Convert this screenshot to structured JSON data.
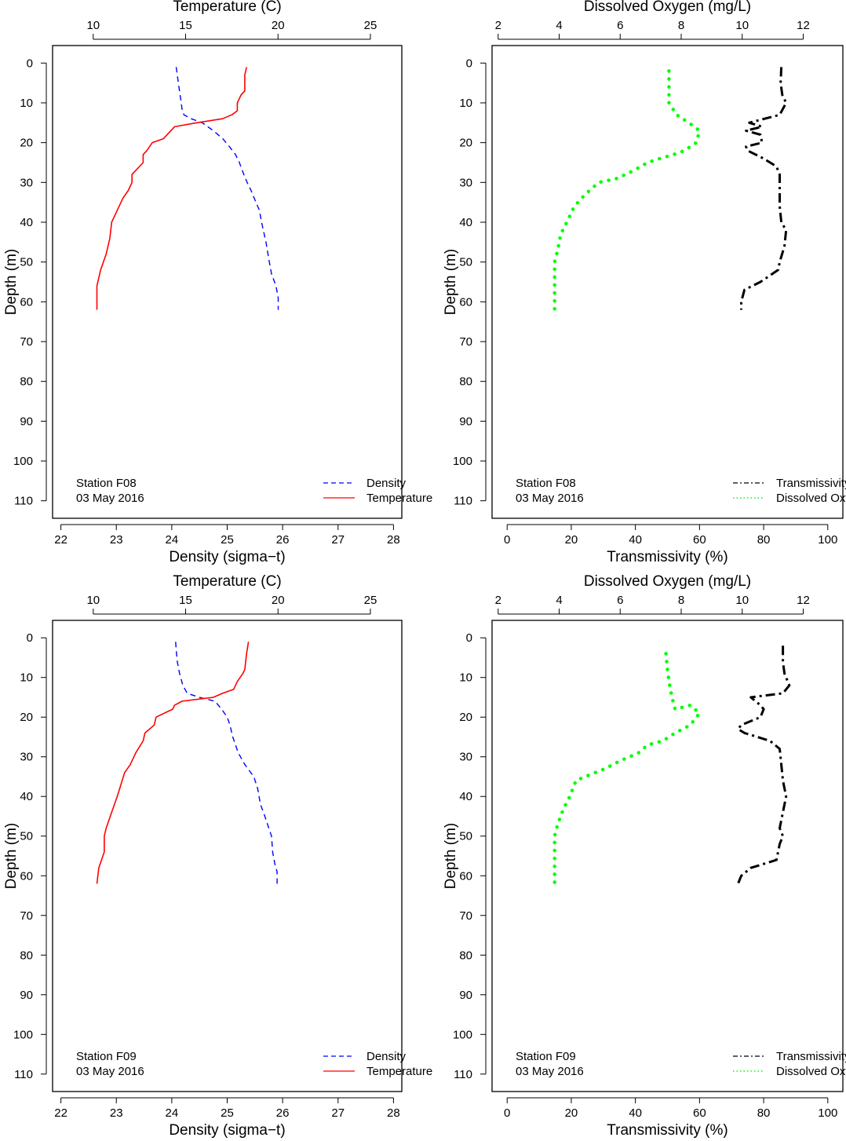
{
  "chart_data": [
    {
      "type": "line",
      "panel": "F08 temperature/density",
      "top_axis": {
        "label": "Temperature (C)",
        "range": [
          7.8,
          26.7
        ],
        "ticks": [
          10,
          15,
          20,
          25
        ]
      },
      "bottom_axis": {
        "label": "Density (sigma−t)",
        "range": [
          21.85,
          28.15
        ],
        "ticks": [
          22,
          23,
          24,
          25,
          26,
          27,
          28
        ]
      },
      "y_axis": {
        "label": "Depth (m)",
        "range": [
          -4.4,
          114.4
        ],
        "reversed": true,
        "ticks": [
          0,
          10,
          20,
          30,
          40,
          50,
          60,
          70,
          80,
          90,
          100,
          110
        ]
      },
      "legend": {
        "placement": "bottom-right",
        "entries": [
          "Density",
          "Temperature"
        ]
      },
      "annotation": {
        "station": "Station F08",
        "date": "03 May 2016"
      },
      "series": [
        {
          "name": "Density",
          "axis": "bottom",
          "color": "#0000ff",
          "style": "dashed",
          "x": [
            24.08,
            24.1,
            24.13,
            24.16,
            24.18,
            24.19,
            24.22,
            24.35,
            24.55,
            24.75,
            24.92,
            25.04,
            25.15,
            25.22,
            25.3,
            25.36,
            25.43,
            25.52,
            25.58,
            25.62,
            25.7,
            25.76,
            25.8,
            25.88,
            25.92,
            25.92
          ],
          "y": [
            1,
            3,
            6,
            9,
            11,
            12,
            13,
            14,
            15,
            17,
            19,
            21,
            23,
            25,
            28,
            30,
            32,
            35,
            37,
            40,
            45,
            50,
            53,
            56,
            59,
            62
          ]
        },
        {
          "name": "Temperature",
          "axis": "top",
          "color": "#ff0000",
          "style": "solid",
          "x": [
            18.3,
            18.2,
            18.2,
            18.0,
            17.8,
            17.8,
            17.5,
            17.0,
            15.6,
            14.4,
            14.2,
            13.8,
            13.2,
            12.9,
            12.7,
            12.7,
            12.1,
            12.1,
            11.9,
            11.6,
            11.4,
            11.0,
            10.9,
            10.7,
            10.4,
            10.2,
            10.2
          ],
          "y": [
            1,
            3,
            7,
            8,
            10,
            12,
            13,
            14,
            15,
            16,
            17,
            19,
            20,
            22,
            23,
            25,
            28,
            30,
            32,
            34,
            36,
            40,
            44,
            48,
            52,
            56,
            62
          ]
        }
      ]
    },
    {
      "type": "line",
      "panel": "F08 transmissivity/oxygen",
      "top_axis": {
        "label": "Dissolved Oxygen (mg/L)",
        "range": [
          1.8,
          13.3
        ],
        "ticks": [
          2,
          4,
          6,
          8,
          10,
          12
        ]
      },
      "bottom_axis": {
        "label": "Transmissivity (%)",
        "range": [
          -4.7,
          104.7
        ],
        "ticks": [
          0,
          20,
          40,
          60,
          80,
          100
        ]
      },
      "y_axis": {
        "label": "Depth (m)",
        "range": [
          -4.4,
          114.4
        ],
        "reversed": true,
        "ticks": [
          0,
          10,
          20,
          30,
          40,
          50,
          60,
          70,
          80,
          90,
          100,
          110
        ]
      },
      "legend": {
        "placement": "bottom-right",
        "entries": [
          "Transmissivity",
          "Dissolved Oxygen"
        ]
      },
      "annotation": {
        "station": "Station F08",
        "date": "03 May 2016"
      },
      "series": [
        {
          "name": "Transmissivity",
          "axis": "bottom",
          "color": "#000000",
          "style": "dashdot",
          "x": [
            85.5,
            85.3,
            85.8,
            87.0,
            85.0,
            75.5,
            79.5,
            74.5,
            79.0,
            79.5,
            74.5,
            75.0,
            80.0,
            84.0,
            85.0,
            85.0,
            85.0,
            85.5,
            87.0,
            86.5,
            85.0,
            84.5,
            79.0,
            74.0,
            73.0,
            73.0
          ],
          "y": [
            1,
            5,
            8,
            10,
            13,
            15,
            16,
            17,
            18,
            20,
            21,
            22,
            24,
            26,
            28,
            32,
            36,
            40,
            42,
            46,
            50,
            52,
            55,
            57,
            60,
            62
          ]
        },
        {
          "name": "Dissolved Oxygen",
          "axis": "top",
          "color": "#00ff00",
          "style": "dotted",
          "x": [
            7.6,
            7.6,
            7.6,
            7.6,
            7.85,
            8.25,
            8.6,
            8.5,
            8.1,
            7.75,
            7.3,
            6.9,
            6.45,
            5.9,
            5.3,
            4.85,
            4.5,
            4.25,
            4.05,
            3.95,
            3.85,
            3.85,
            3.85,
            3.85
          ],
          "y": [
            2,
            6,
            8,
            10,
            13,
            15,
            17,
            20,
            22,
            23,
            24,
            25,
            27,
            29,
            30,
            33,
            36,
            40,
            43,
            47,
            50,
            54,
            58,
            62
          ]
        }
      ]
    },
    {
      "type": "line",
      "panel": "F09 temperature/density",
      "top_axis": {
        "label": "Temperature (C)",
        "range": [
          7.8,
          26.7
        ],
        "ticks": [
          10,
          15,
          20,
          25
        ]
      },
      "bottom_axis": {
        "label": "Density (sigma−t)",
        "range": [
          21.85,
          28.15
        ],
        "ticks": [
          22,
          23,
          24,
          25,
          26,
          27,
          28
        ]
      },
      "y_axis": {
        "label": "Depth (m)",
        "range": [
          -4.4,
          114.4
        ],
        "reversed": true,
        "ticks": [
          0,
          10,
          20,
          30,
          40,
          50,
          60,
          70,
          80,
          90,
          100,
          110
        ]
      },
      "legend": {
        "placement": "bottom-right",
        "entries": [
          "Density",
          "Temperature"
        ]
      },
      "annotation": {
        "station": "Station F09",
        "date": "03 May 2016"
      },
      "series": [
        {
          "name": "Density",
          "axis": "bottom",
          "color": "#0000ff",
          "style": "dashed",
          "x": [
            24.07,
            24.08,
            24.1,
            24.14,
            24.2,
            24.28,
            24.5,
            24.78,
            24.9,
            25.0,
            25.05,
            25.1,
            25.2,
            25.32,
            25.48,
            25.55,
            25.6,
            25.68,
            25.75,
            25.8,
            25.82,
            25.86,
            25.9,
            25.9
          ],
          "y": [
            1,
            3,
            6,
            9,
            12,
            14,
            15,
            16,
            18,
            20,
            22,
            25,
            29,
            32,
            35,
            38,
            42,
            45,
            48,
            50,
            54,
            57,
            59,
            62
          ]
        },
        {
          "name": "Temperature",
          "axis": "top",
          "color": "#ff0000",
          "style": "solid",
          "x": [
            18.4,
            18.3,
            18.2,
            18.1,
            17.8,
            17.6,
            17.0,
            16.5,
            14.8,
            14.4,
            14.3,
            13.4,
            13.3,
            12.8,
            12.7,
            12.3,
            12.0,
            11.7,
            11.5,
            11.3,
            11.0,
            10.7,
            10.6,
            10.6,
            10.3,
            10.2
          ],
          "y": [
            1,
            4,
            8,
            9,
            11,
            13,
            14,
            15,
            16,
            17,
            18,
            20,
            22,
            24,
            26,
            29,
            32,
            34,
            37,
            40,
            44,
            48,
            50,
            54,
            58,
            62
          ]
        }
      ]
    },
    {
      "type": "line",
      "panel": "F09 transmissivity/oxygen",
      "top_axis": {
        "label": "Dissolved Oxygen (mg/L)",
        "range": [
          1.8,
          13.3
        ],
        "ticks": [
          2,
          4,
          6,
          8,
          10,
          12
        ]
      },
      "bottom_axis": {
        "label": "Transmissivity (%)",
        "range": [
          -4.7,
          104.7
        ],
        "ticks": [
          0,
          20,
          40,
          60,
          80,
          100
        ]
      },
      "y_axis": {
        "label": "Depth (m)",
        "range": [
          -4.4,
          114.4
        ],
        "reversed": true,
        "ticks": [
          0,
          10,
          20,
          30,
          40,
          50,
          60,
          70,
          80,
          90,
          100,
          110
        ]
      },
      "legend": {
        "placement": "bottom-right",
        "entries": [
          "Transmissivity",
          "Dissolved Oxygen"
        ]
      },
      "annotation": {
        "station": "Station F09",
        "date": "03 May 2016"
      },
      "series": [
        {
          "name": "Transmissivity",
          "axis": "bottom",
          "color": "#000000",
          "style": "dashdot",
          "x": [
            86.0,
            86.0,
            86.5,
            88.0,
            86.0,
            76.0,
            79.0,
            80.0,
            79.0,
            73.0,
            72.0,
            74.0,
            82.0,
            85.0,
            85.5,
            86.0,
            87.0,
            86.0,
            85.0,
            86.0,
            85.0,
            84.0,
            76.0,
            73.0,
            72.0
          ],
          "y": [
            2,
            6,
            9,
            12,
            14,
            15,
            17,
            18,
            20,
            22,
            23,
            24,
            26,
            28,
            32,
            36,
            40,
            44,
            48,
            50,
            52,
            56,
            58,
            60,
            62
          ]
        },
        {
          "name": "Dissolved Oxygen",
          "axis": "top",
          "color": "#00ff00",
          "style": "dotted",
          "x": [
            7.5,
            7.55,
            7.6,
            7.7,
            7.8,
            8.3,
            8.6,
            8.3,
            7.8,
            7.4,
            6.9,
            6.6,
            6.0,
            5.5,
            4.85,
            4.55,
            4.35,
            4.15,
            3.95,
            3.85,
            3.85,
            3.85,
            3.85
          ],
          "y": [
            4,
            8,
            11,
            15,
            18,
            17,
            19,
            22,
            24,
            26,
            27,
            29,
            31,
            33,
            35,
            36,
            40,
            43,
            47,
            50,
            54,
            58,
            62
          ]
        }
      ]
    }
  ]
}
